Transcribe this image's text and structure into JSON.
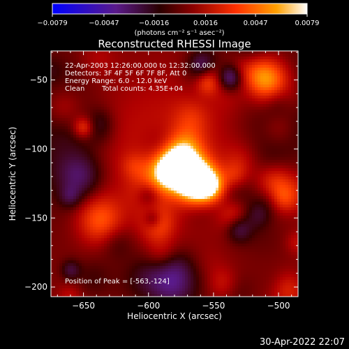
{
  "chart_data": {
    "type": "heatmap",
    "title": "Reconstructed RHESSI Image",
    "xlabel": "Heliocentric X (arcsec)",
    "ylabel": "Heliocentric Y (arcsec)",
    "xlim": [
      -675,
      -485
    ],
    "ylim": [
      -207,
      -29
    ],
    "xticks": [
      -650,
      -600,
      -550,
      -500
    ],
    "xtick_labels": [
      "−650",
      "−600",
      "−550",
      "−500"
    ],
    "yticks": [
      -50,
      -100,
      -150,
      -200
    ],
    "ytick_labels": [
      "−50",
      "−100",
      "−150",
      "−200"
    ],
    "colorbar": {
      "min": -0.0079,
      "max": 0.0079,
      "ticks": [
        -0.0079,
        -0.0047,
        -0.0016,
        0.0016,
        0.0047,
        0.0079
      ],
      "tick_labels": [
        "−0.0079",
        "−0.0047",
        "−0.0016",
        "0.0016",
        "0.0047",
        "0.0079"
      ],
      "unit_label": "(photons cm⁻² s⁻¹ asec⁻²)"
    },
    "annotations": [
      "22-Apr-2003 12:26:00.000 to 12:32:00.000",
      "Detectors: 3F 4F 5F 6F 7F 8F, Att 0",
      "Energy Range: 6.0 - 12.0 keV",
      "Clean",
      "Total counts: 4.35E+04",
      "Position of Peak = [-563,-124]"
    ],
    "peak": {
      "x": -563,
      "y": -124
    },
    "colormap": [
      "#0000ff",
      "#5a1a8a",
      "#3a0000",
      "#b00000",
      "#ff4000",
      "#ffa000",
      "#ffffff"
    ]
  },
  "footer": {
    "date": "30-Apr-2022 22:07"
  }
}
